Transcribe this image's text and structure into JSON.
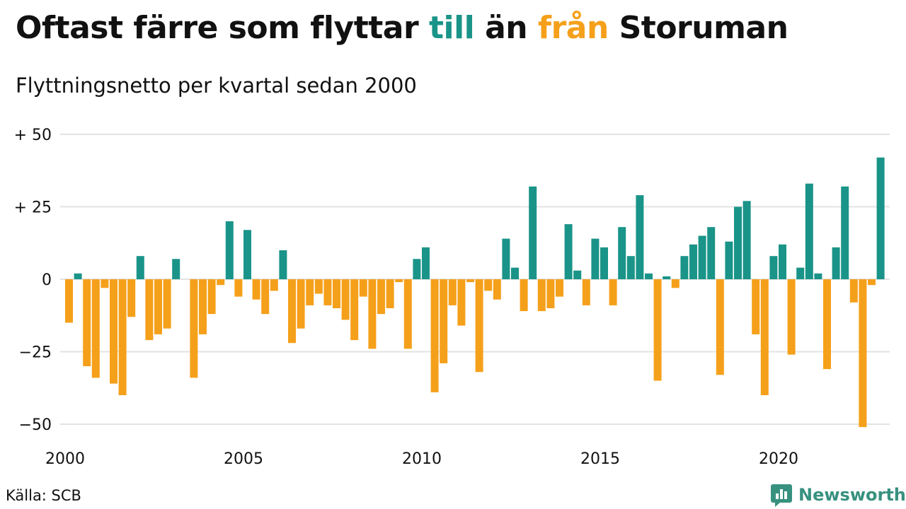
{
  "title": {
    "part1": "Oftast färre som flyttar ",
    "till": "till",
    "part2": " än ",
    "fran": "från",
    "part3": " Storuman"
  },
  "subtitle": "Flyttningsnetto per kvartal sedan 2000",
  "source": "Källa: SCB",
  "brand": "Newsworthy",
  "colors": {
    "positive": "#1a9488",
    "negative": "#f5a01a",
    "grid": "#e3e3e3",
    "brand": "#37917f"
  },
  "chart_data": {
    "type": "bar",
    "title": "Oftast färre som flyttar till än från Storuman",
    "subtitle": "Flyttningsnetto per kvartal sedan 2000",
    "xlabel": "",
    "ylabel": "",
    "ylim": [
      -55,
      50
    ],
    "grid": true,
    "y_ticks": [
      50,
      25,
      0,
      -25,
      -50
    ],
    "y_tick_labels": [
      "+ 50",
      "+ 25",
      "0",
      "−25",
      "−50"
    ],
    "x_ticks": [
      "2000",
      "2005",
      "2010",
      "2015",
      "2020"
    ],
    "x_start": "2000 Q1",
    "values": [
      -15,
      2,
      -30,
      -34,
      -3,
      -36,
      -40,
      -13,
      8,
      -21,
      -19,
      -17,
      7,
      0,
      -34,
      -19,
      -12,
      -2,
      20,
      -6,
      17,
      -7,
      -12,
      -4,
      10,
      -22,
      -17,
      -9,
      -5,
      -9,
      -10,
      -14,
      -21,
      -6,
      -24,
      -12,
      -10,
      -1,
      -24,
      7,
      11,
      -39,
      -29,
      -9,
      -16,
      -1,
      -32,
      -4,
      -7,
      14,
      4,
      -11,
      32,
      -11,
      -10,
      -6,
      19,
      3,
      -9,
      14,
      11,
      -9,
      18,
      8,
      29,
      2,
      -35,
      1,
      -3,
      8,
      12,
      15,
      18,
      -33,
      13,
      25,
      27,
      -19,
      -40,
      8,
      12,
      -26,
      4,
      33,
      2,
      -31,
      11,
      32,
      -8,
      -51,
      -2,
      42
    ]
  }
}
